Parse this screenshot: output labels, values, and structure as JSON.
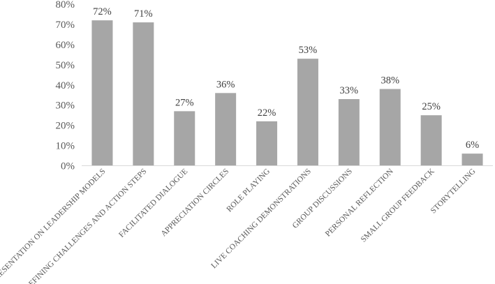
{
  "chart_data": {
    "type": "bar",
    "title": "",
    "xlabel": "",
    "ylabel": "",
    "categories": [
      "PRESENTATION ON LEADERSHIP MODELS",
      "DEFINING CHALLENGES AND ACTION STEPS",
      "FACILITATED DIALOGUE",
      "APPRECIATION CIRCLES",
      "ROLE PLAYING",
      "LIVE COACHING DEMONSTRATIONS",
      "GROUP DISCUSSIONS",
      "PERSONAL REFLECTION",
      "SMALL GROUP FEEDBACK",
      "STORYTELLING"
    ],
    "values": [
      72,
      71,
      27,
      36,
      22,
      53,
      33,
      38,
      25,
      6
    ],
    "data_labels": [
      "72%",
      "71%",
      "27%",
      "36%",
      "22%",
      "53%",
      "33%",
      "38%",
      "25%",
      "6%"
    ],
    "ylim": [
      0,
      80
    ],
    "y_ticks": [
      0,
      10,
      20,
      30,
      40,
      50,
      60,
      70,
      80
    ],
    "y_tick_labels": [
      "0%",
      "10%",
      "20%",
      "30%",
      "40%",
      "50%",
      "60%",
      "70%",
      "80%"
    ],
    "grid": false,
    "legend": "none",
    "bar_color": "#a6a6a6"
  }
}
